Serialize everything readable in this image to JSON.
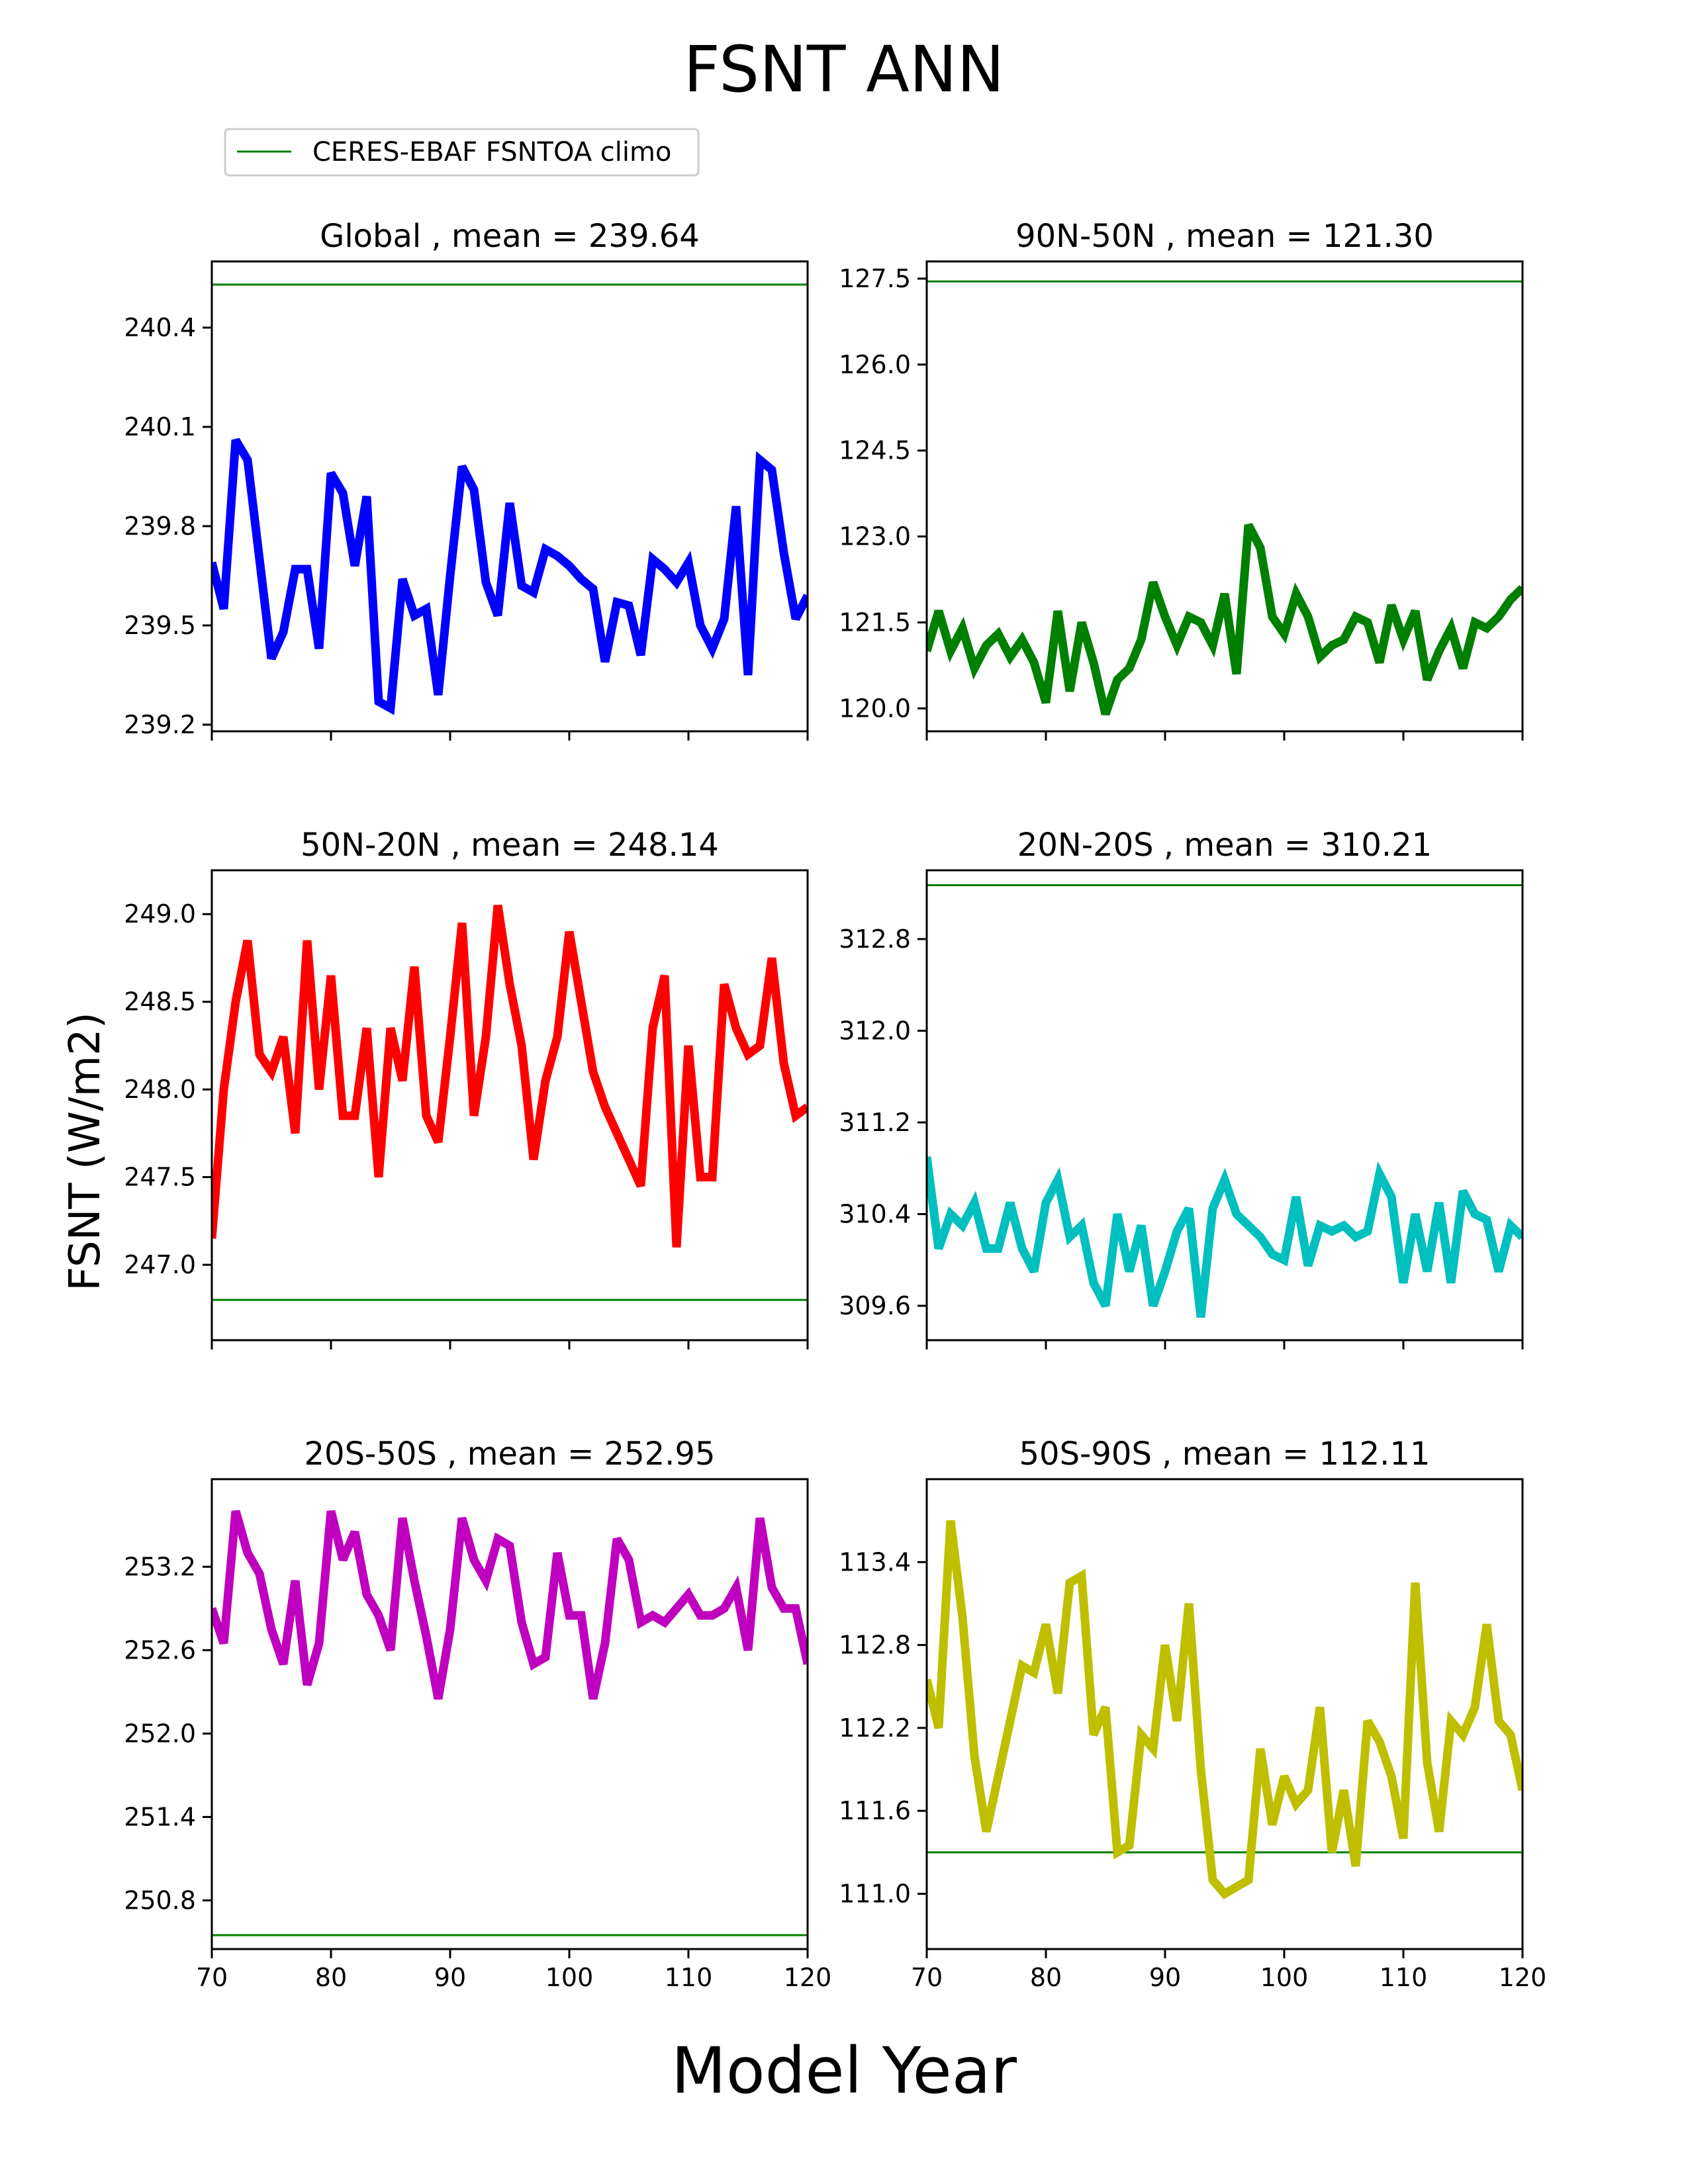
{
  "title": "FSNT ANN",
  "xlabel": "Model Year",
  "ylabel": "FSNT (W/m2)",
  "legend": {
    "label": "CERES-EBAF FSNTOA climo",
    "color": "#008000",
    "placement": "top-left"
  },
  "chart_data": [
    {
      "type": "line",
      "region": "Global",
      "title": "Global , mean = 239.64",
      "color": "#0000ff",
      "xlim": [
        70,
        120
      ],
      "ylim": [
        239.18,
        240.6
      ],
      "climo": 240.53,
      "xticks": [
        70,
        80,
        90,
        100,
        110,
        120
      ],
      "yticks": [
        239.2,
        239.5,
        239.8,
        240.1,
        240.4
      ],
      "ytick_labels": [
        "239.2",
        "239.5",
        "239.8",
        "240.1",
        "240.4"
      ],
      "show_xlabels": false,
      "x": [
        70,
        71,
        72,
        73,
        74,
        75,
        76,
        77,
        78,
        79,
        80,
        81,
        82,
        83,
        84,
        85,
        86,
        87,
        88,
        89,
        90,
        91,
        92,
        93,
        94,
        95,
        96,
        97,
        98,
        99,
        100,
        101,
        102,
        103,
        104,
        105,
        106,
        107,
        108,
        109,
        110,
        111,
        112,
        113,
        114,
        115,
        116,
        117,
        118,
        119,
        120
      ],
      "y": [
        239.69,
        239.55,
        240.06,
        240.0,
        239.7,
        239.4,
        239.48,
        239.67,
        239.67,
        239.43,
        239.96,
        239.9,
        239.68,
        239.89,
        239.27,
        239.25,
        239.64,
        239.53,
        239.55,
        239.29,
        239.65,
        239.98,
        239.91,
        239.63,
        239.53,
        239.87,
        239.62,
        239.6,
        239.73,
        239.71,
        239.68,
        239.64,
        239.61,
        239.39,
        239.57,
        239.56,
        239.41,
        239.7,
        239.67,
        239.63,
        239.69,
        239.5,
        239.43,
        239.52,
        239.86,
        239.35,
        240.0,
        239.97,
        239.72,
        239.52,
        239.59
      ]
    },
    {
      "type": "line",
      "region": "90N-50N",
      "title": "90N-50N , mean = 121.30",
      "color": "#008000",
      "xlim": [
        70,
        120
      ],
      "ylim": [
        119.6,
        127.8
      ],
      "climo": 127.45,
      "xticks": [
        70,
        80,
        90,
        100,
        110,
        120
      ],
      "yticks": [
        120.0,
        121.5,
        123.0,
        124.5,
        126.0,
        127.5
      ],
      "ytick_labels": [
        "120.0",
        "121.5",
        "123.0",
        "124.5",
        "126.0",
        "127.5"
      ],
      "show_xlabels": false,
      "x": [
        70,
        71,
        72,
        73,
        74,
        75,
        76,
        77,
        78,
        79,
        80,
        81,
        82,
        83,
        84,
        85,
        86,
        87,
        88,
        89,
        90,
        91,
        92,
        93,
        94,
        95,
        96,
        97,
        98,
        99,
        100,
        101,
        102,
        103,
        104,
        105,
        106,
        107,
        108,
        109,
        110,
        111,
        112,
        113,
        114,
        115,
        116,
        117,
        118,
        119,
        120
      ],
      "y": [
        121.0,
        121.7,
        121.0,
        121.4,
        120.7,
        121.1,
        121.3,
        120.9,
        121.2,
        120.8,
        120.1,
        121.7,
        120.3,
        121.5,
        120.8,
        119.9,
        120.5,
        120.7,
        121.2,
        122.2,
        121.6,
        121.1,
        121.6,
        121.5,
        121.1,
        122.0,
        120.6,
        123.2,
        122.8,
        121.6,
        121.3,
        122.0,
        121.6,
        120.9,
        121.1,
        121.2,
        121.6,
        121.5,
        120.8,
        121.8,
        121.2,
        121.7,
        120.5,
        121.0,
        121.4,
        120.7,
        121.5,
        121.4,
        121.6,
        121.9,
        122.1
      ]
    },
    {
      "type": "line",
      "region": "50N-20N",
      "title": "50N-20N , mean = 248.14",
      "color": "#ff0000",
      "xlim": [
        70,
        120
      ],
      "ylim": [
        246.57,
        249.25
      ],
      "climo": 246.8,
      "xticks": [
        70,
        80,
        90,
        100,
        110,
        120
      ],
      "yticks": [
        247.0,
        247.5,
        248.0,
        248.5,
        249.0
      ],
      "ytick_labels": [
        "247.0",
        "247.5",
        "248.0",
        "248.5",
        "249.0"
      ],
      "show_xlabels": false,
      "x": [
        70,
        71,
        72,
        73,
        74,
        75,
        76,
        77,
        78,
        79,
        80,
        81,
        82,
        83,
        84,
        85,
        86,
        87,
        88,
        89,
        90,
        91,
        92,
        93,
        94,
        95,
        96,
        97,
        98,
        99,
        100,
        101,
        102,
        103,
        104,
        105,
        106,
        107,
        108,
        109,
        110,
        111,
        112,
        113,
        114,
        115,
        116,
        117,
        118,
        119,
        120
      ],
      "y": [
        247.15,
        248.0,
        248.5,
        248.85,
        248.2,
        248.1,
        248.3,
        247.75,
        248.85,
        248.0,
        248.65,
        247.85,
        247.85,
        248.35,
        247.5,
        248.35,
        248.05,
        248.7,
        247.85,
        247.7,
        248.3,
        248.95,
        247.85,
        248.3,
        249.05,
        248.6,
        248.25,
        247.6,
        248.05,
        248.3,
        248.9,
        248.5,
        248.1,
        247.9,
        247.75,
        247.6,
        247.45,
        248.35,
        248.65,
        247.1,
        248.25,
        247.5,
        247.5,
        248.6,
        248.35,
        248.2,
        248.25,
        248.75,
        248.15,
        247.85,
        247.9
      ]
    },
    {
      "type": "line",
      "region": "20N-20S",
      "title": "20N-20S , mean = 310.21",
      "color": "#00bfbf",
      "xlim": [
        70,
        120
      ],
      "ylim": [
        309.3,
        313.4
      ],
      "climo": 313.27,
      "xticks": [
        70,
        80,
        90,
        100,
        110,
        120
      ],
      "yticks": [
        309.6,
        310.4,
        311.2,
        312.0,
        312.8
      ],
      "ytick_labels": [
        "309.6",
        "310.4",
        "311.2",
        "312.0",
        "312.8"
      ],
      "show_xlabels": false,
      "x": [
        70,
        71,
        72,
        73,
        74,
        75,
        76,
        77,
        78,
        79,
        80,
        81,
        82,
        83,
        84,
        85,
        86,
        87,
        88,
        89,
        90,
        91,
        92,
        93,
        94,
        95,
        96,
        97,
        98,
        99,
        100,
        101,
        102,
        103,
        104,
        105,
        106,
        107,
        108,
        109,
        110,
        111,
        112,
        113,
        114,
        115,
        116,
        117,
        118,
        119,
        120
      ],
      "y": [
        310.9,
        310.1,
        310.4,
        310.3,
        310.5,
        310.1,
        310.1,
        310.5,
        310.1,
        309.9,
        310.5,
        310.7,
        310.2,
        310.3,
        309.8,
        309.6,
        310.4,
        309.9,
        310.3,
        309.6,
        309.9,
        310.25,
        310.45,
        309.5,
        310.45,
        310.7,
        310.4,
        310.3,
        310.2,
        310.05,
        310.0,
        310.55,
        309.95,
        310.3,
        310.25,
        310.3,
        310.2,
        310.25,
        310.75,
        310.55,
        309.8,
        310.4,
        309.9,
        310.5,
        309.8,
        310.6,
        310.4,
        310.35,
        309.9,
        310.3,
        310.2
      ]
    },
    {
      "type": "line",
      "region": "20S-50S",
      "title": "20S-50S , mean = 252.95",
      "color": "#bf00bf",
      "xlim": [
        70,
        120
      ],
      "ylim": [
        250.45,
        253.83
      ],
      "climo": 250.55,
      "xticks": [
        70,
        80,
        90,
        100,
        110,
        120
      ],
      "yticks": [
        250.8,
        251.4,
        252.0,
        252.6,
        253.2
      ],
      "ytick_labels": [
        "250.8",
        "251.4",
        "252.0",
        "252.6",
        "253.2"
      ],
      "show_xlabels": true,
      "x": [
        70,
        71,
        72,
        73,
        74,
        75,
        76,
        77,
        78,
        79,
        80,
        81,
        82,
        83,
        84,
        85,
        86,
        87,
        88,
        89,
        90,
        91,
        92,
        93,
        94,
        95,
        96,
        97,
        98,
        99,
        100,
        101,
        102,
        103,
        104,
        105,
        106,
        107,
        108,
        109,
        110,
        111,
        112,
        113,
        114,
        115,
        116,
        117,
        118,
        119,
        120
      ],
      "y": [
        252.9,
        252.65,
        253.6,
        253.3,
        253.15,
        252.75,
        252.5,
        253.1,
        252.35,
        252.65,
        253.6,
        253.25,
        253.45,
        253.0,
        252.85,
        252.6,
        253.55,
        253.1,
        252.7,
        252.25,
        252.75,
        253.55,
        253.25,
        253.1,
        253.4,
        253.35,
        252.8,
        252.5,
        252.55,
        253.3,
        252.85,
        252.85,
        252.25,
        252.65,
        253.4,
        253.25,
        252.8,
        252.85,
        252.8,
        252.9,
        253.0,
        252.85,
        252.85,
        252.9,
        253.05,
        252.6,
        253.55,
        253.05,
        252.9,
        252.9,
        252.5
      ]
    },
    {
      "type": "line",
      "region": "50S-90S",
      "title": "50S-90S , mean = 112.11",
      "color": "#bfbf00",
      "xlim": [
        70,
        120
      ],
      "ylim": [
        110.6,
        114.0
      ],
      "climo": 111.3,
      "xticks": [
        70,
        80,
        90,
        100,
        110,
        120
      ],
      "yticks": [
        111.0,
        111.6,
        112.2,
        112.8,
        113.4
      ],
      "ytick_labels": [
        "111.0",
        "111.6",
        "112.2",
        "112.8",
        "113.4"
      ],
      "show_xlabels": true,
      "x": [
        70,
        71,
        72,
        73,
        74,
        75,
        76,
        77,
        78,
        79,
        80,
        81,
        82,
        83,
        84,
        85,
        86,
        87,
        88,
        89,
        90,
        91,
        92,
        93,
        94,
        95,
        96,
        97,
        98,
        99,
        100,
        101,
        102,
        103,
        104,
        105,
        106,
        107,
        108,
        109,
        110,
        111,
        112,
        113,
        114,
        115,
        116,
        117,
        118,
        119,
        120
      ],
      "y": [
        112.55,
        112.2,
        113.7,
        113.0,
        112.0,
        111.45,
        111.85,
        112.25,
        112.65,
        112.6,
        112.95,
        112.45,
        113.25,
        113.3,
        112.15,
        112.35,
        111.3,
        111.35,
        112.15,
        112.05,
        112.8,
        112.25,
        113.1,
        111.9,
        111.1,
        111.0,
        111.05,
        111.1,
        112.05,
        111.5,
        111.85,
        111.65,
        111.75,
        112.35,
        111.3,
        111.75,
        111.2,
        112.25,
        112.1,
        111.85,
        111.4,
        113.25,
        111.95,
        111.45,
        112.25,
        112.15,
        112.35,
        112.95,
        112.25,
        112.15,
        111.75
      ]
    }
  ]
}
